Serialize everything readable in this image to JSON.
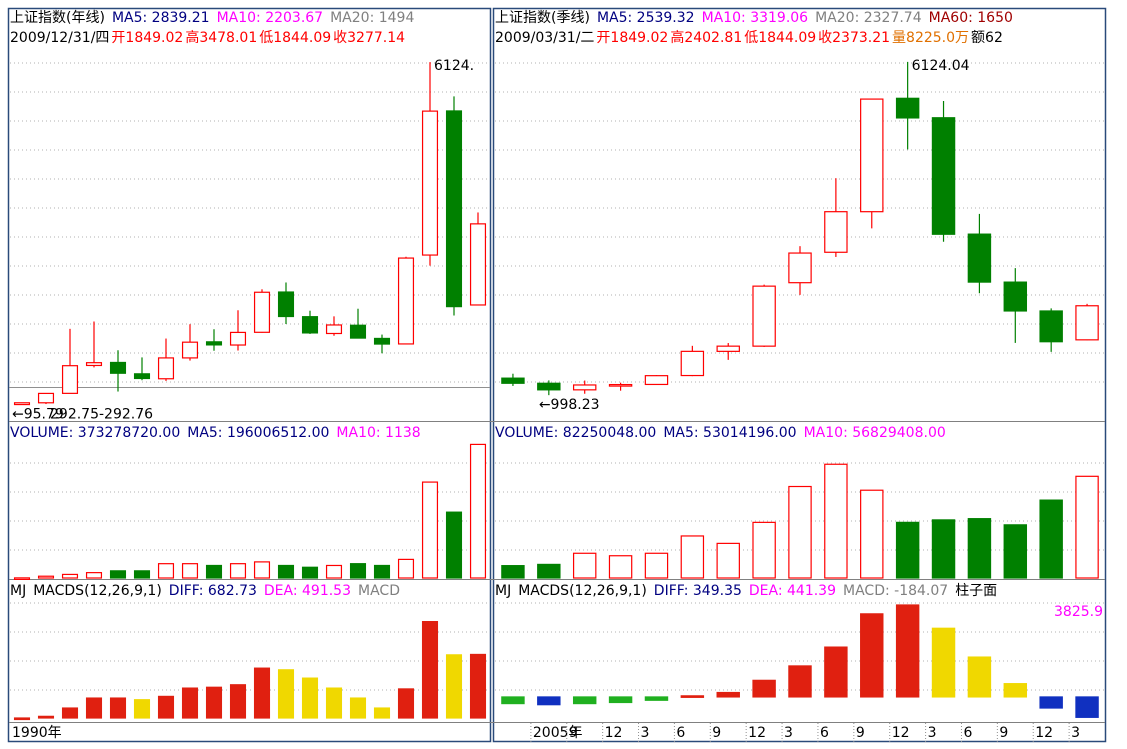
{
  "chart_data": [
    {
      "type": "candlestick",
      "title": "上证指数(年线)",
      "header": [
        {
          "text": "MA5: 2839.21",
          "color": "#000080"
        },
        {
          "text": "MA10: 2203.67",
          "color": "#ff00ff"
        },
        {
          "text": "MA20: 1494",
          "color": "#808080"
        }
      ],
      "subheader": [
        {
          "text": "2009/12/31/四",
          "color": "#000000"
        },
        {
          "text": "开1849.02",
          "color": "#ff0000"
        },
        {
          "text": "高3478.01",
          "color": "#ff0000"
        },
        {
          "text": "低1844.09",
          "color": "#ff0000"
        },
        {
          "text": "收3277.14",
          "color": "#ff0000"
        }
      ],
      "categories": [
        "1990年",
        null,
        null,
        null,
        null,
        null,
        null,
        null,
        null,
        null,
        null,
        null,
        null,
        null,
        null,
        null,
        null,
        null,
        null,
        null
      ],
      "open": [
        96,
        127,
        293,
        784,
        837,
        637,
        550,
        917,
        1200,
        1144,
        1368,
        2077,
        1643,
        1347,
        1492,
        1260,
        1163,
        2728,
        5265,
        1849.02
      ],
      "high": [
        127,
        292,
        1429,
        1558,
        1052,
        926,
        1258,
        1510,
        1422,
        1756,
        2125,
        2245,
        1748,
        1649,
        1783,
        1328,
        2698,
        6124.04,
        5522,
        3478.01
      ],
      "low": [
        95.79,
        105,
        292,
        750,
        325,
        524,
        512,
        870,
        1043,
        1047,
        1361,
        1514,
        1339,
        1307,
        1259,
        998.23,
        1161,
        2541,
        1664,
        1844.09
      ],
      "close": [
        127,
        292,
        780,
        833,
        647,
        555,
        917,
        1194,
        1146,
        1366,
        2073,
        1646,
        1357,
        1497,
        1266,
        1161,
        2675,
        5262,
        1820,
        3277.14
      ],
      "ylim": [
        0,
        6250
      ],
      "grid": true,
      "up_color": "#ff0000",
      "down_color": "#008000",
      "annotations": [
        "6124.",
        "←95.79",
        "292.75-292.76"
      ]
    },
    {
      "type": "bar",
      "title": "VOLUME: 373278720.00",
      "title_color": "#000080",
      "header": [
        {
          "text": "MA5: 196006512.00",
          "color": "#000080"
        },
        {
          "text": "MA10: 1138",
          "color": "#ff00ff"
        }
      ],
      "values": [
        300000,
        5000000,
        10000000,
        15000000,
        20000000,
        20000000,
        40000000,
        40000000,
        35000000,
        40000000,
        45000000,
        35000000,
        30000000,
        35000000,
        40000000,
        35000000,
        52000000,
        268000000,
        184000000,
        373278720
      ],
      "ylim": [
        0,
        380000000
      ],
      "grid": true,
      "colors": {
        "up": "#ff0000",
        "down": "#008000"
      }
    },
    {
      "type": "bar",
      "title": "MJ",
      "header": [
        {
          "text": "MACDS(12,26,9,1)",
          "color": "#000000"
        },
        {
          "text": "DIFF: 682.73",
          "color": "#000080"
        },
        {
          "text": "DEA: 491.53",
          "color": "#ff00ff"
        },
        {
          "text": "MACD",
          "color": "#808080"
        }
      ],
      "values": [
        0,
        10,
        60,
        120,
        120,
        110,
        130,
        180,
        185,
        200,
        300,
        290,
        240,
        180,
        120,
        60,
        175,
        580,
        380,
        382.4
      ],
      "ylim": [
        0,
        710
      ],
      "grid": true,
      "colors": {
        "rise": "#e02010",
        "fall": "#f0d800",
        "neg_fall": "#1030c0",
        "neg_rise": "#20b020"
      }
    },
    {
      "type": "candlestick",
      "title": "上证指数(季线)",
      "header": [
        {
          "text": "MA5: 2539.32",
          "color": "#000080"
        },
        {
          "text": "MA10: 3319.06",
          "color": "#ff00ff"
        },
        {
          "text": "MA20: 2327.74",
          "color": "#808080"
        },
        {
          "text": "MA60: 1650",
          "color": "#a00000"
        }
      ],
      "subheader": [
        {
          "text": "2009/03/31/二",
          "color": "#000000"
        },
        {
          "text": "开1849.02",
          "color": "#ff0000"
        },
        {
          "text": "高2402.81",
          "color": "#ff0000"
        },
        {
          "text": "低1844.09",
          "color": "#ff0000"
        },
        {
          "text": "收2373.21",
          "color": "#ff0000"
        },
        {
          "text": "量8225.0万",
          "color": "#e07000"
        },
        {
          "text": "额62",
          "color": "#000000"
        }
      ],
      "categories": [
        null,
        "2005年",
        "9",
        "12",
        "3",
        "6",
        "9",
        "12",
        "3",
        "6",
        "9",
        "12",
        "3",
        "6",
        "9",
        "12",
        "3"
      ],
      "open": [
        1260,
        1181,
        1080,
        1155,
        1163,
        1300,
        1672,
        1752,
        2728,
        3196,
        3820,
        5564,
        5265,
        3475,
        2737,
        2293,
        1849.02
      ],
      "high": [
        1328,
        1225,
        1223,
        1190,
        1306,
        1757,
        1800,
        2698,
        3290,
        4335,
        5552,
        6124.04,
        5522,
        3786,
        2952,
        2333,
        2402.81
      ],
      "low": [
        1140,
        998.23,
        1020,
        1067,
        1161,
        1291,
        1541,
        1740,
        2541,
        3124,
        3563,
        4778,
        3357,
        2566,
        1802,
        1664,
        1844.09
      ],
      "close": [
        1181,
        1080,
        1155,
        1161,
        1298,
        1672,
        1752,
        2675,
        3184,
        3820,
        5552,
        5262,
        3473,
        2737,
        2293,
        1820,
        2373.21
      ],
      "ylim": [
        770,
        6230
      ],
      "grid": true,
      "up_color": "#ff0000",
      "down_color": "#008000",
      "annotations": [
        "6124.04",
        "←998.23"
      ]
    },
    {
      "type": "bar",
      "title": "VOLUME: 82250048.00",
      "title_color": "#000080",
      "header": [
        {
          "text": "MA5: 53014196.00",
          "color": "#000080"
        },
        {
          "text": "MA10: 56829408.00",
          "color": "#ff00ff"
        }
      ],
      "values": [
        10000000,
        11000000,
        20000000,
        18000000,
        20000000,
        34000000,
        28000000,
        45000000,
        74000000,
        92000000,
        71000000,
        45000000,
        47000000,
        48000000,
        43000000,
        63000000,
        82250048
      ],
      "ylim": [
        0,
        110000000
      ],
      "grid": true,
      "colors": {
        "up": "#ff0000",
        "down": "#008000"
      }
    },
    {
      "type": "bar",
      "title": "MJ",
      "header": [
        {
          "text": "MACDS(12,26,9,1)",
          "color": "#000000"
        },
        {
          "text": "DIFF: 349.35",
          "color": "#000080"
        },
        {
          "text": "DEA: 441.39",
          "color": "#ff00ff"
        },
        {
          "text": "MACD: -184.07",
          "color": "#808080"
        },
        {
          "text": "柱子面",
          "color": "#000000"
        }
      ],
      "values": [
        -60,
        -70,
        -60,
        -50,
        -30,
        10,
        40,
        150,
        280,
        450,
        750,
        830,
        620,
        360,
        120,
        -100,
        -184.07
      ],
      "ylim": [
        -190,
        875
      ],
      "grid": true,
      "colors": {
        "rise": "#e02010",
        "fall": "#f0d800",
        "neg_fall": "#1030c0",
        "neg_rise": "#20b020"
      },
      "annotations": [
        "3825.9"
      ]
    }
  ]
}
